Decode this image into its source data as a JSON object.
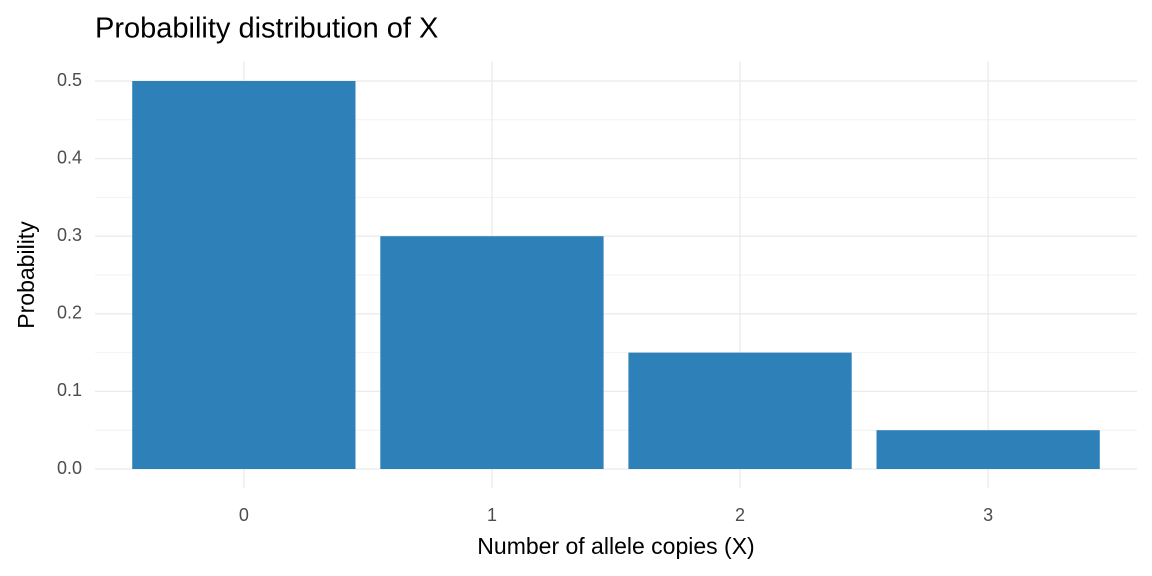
{
  "chart_data": {
    "type": "bar",
    "title": "Probability distribution of X",
    "x_label": "Number of allele copies (X)",
    "y_label": "Probability",
    "categories": [
      "0",
      "1",
      "2",
      "3"
    ],
    "values": [
      0.5,
      0.3,
      0.15,
      0.05
    ],
    "color": "#2e80b9",
    "ylim": [
      -0.025,
      0.525
    ],
    "yticks": [
      {
        "value": 0,
        "label": "0.0"
      },
      0.1,
      0.2,
      0.3,
      0.4,
      0.5
    ],
    "grid": true
  }
}
